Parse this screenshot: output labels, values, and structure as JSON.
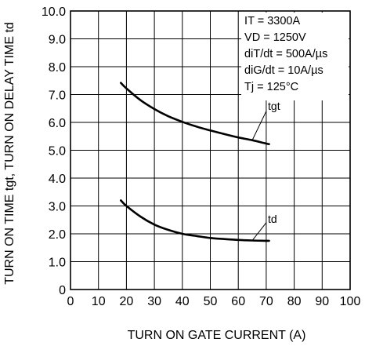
{
  "chart_data": {
    "type": "line",
    "title": "",
    "xlabel": "TURN ON GATE CURRENT  (A)",
    "ylabel": "TURN ON TIME  tgt, TURN ON DELAY TIME  td",
    "xlim": [
      0,
      100
    ],
    "ylim": [
      0,
      10
    ],
    "x_ticks": [
      "0",
      "10",
      "20",
      "30",
      "40",
      "50",
      "60",
      "70",
      "80",
      "90",
      "100"
    ],
    "y_ticks": [
      "0",
      "1.0",
      "2.0",
      "3.0",
      "4.0",
      "5.0",
      "6.0",
      "7.0",
      "8.0",
      "9.0",
      "10.0"
    ],
    "grid": true,
    "conditions": [
      "IT = 3300A",
      "VD = 1250V",
      "diT/dt = 500A/µs",
      "diG/dt = 10A/µs",
      "Tj = 125°C"
    ],
    "series": [
      {
        "name": "tgt",
        "x": [
          18,
          20,
          25,
          30,
          35,
          40,
          45,
          50,
          55,
          60,
          65,
          70,
          71
        ],
        "values": [
          7.42,
          7.22,
          6.8,
          6.48,
          6.22,
          6.02,
          5.85,
          5.71,
          5.58,
          5.46,
          5.36,
          5.24,
          5.22
        ]
      },
      {
        "name": "td",
        "x": [
          18,
          20,
          25,
          30,
          35,
          40,
          45,
          50,
          55,
          60,
          65,
          70,
          71
        ],
        "values": [
          3.2,
          3.0,
          2.62,
          2.33,
          2.14,
          2.0,
          1.92,
          1.85,
          1.81,
          1.78,
          1.76,
          1.75,
          1.75
        ]
      }
    ]
  }
}
